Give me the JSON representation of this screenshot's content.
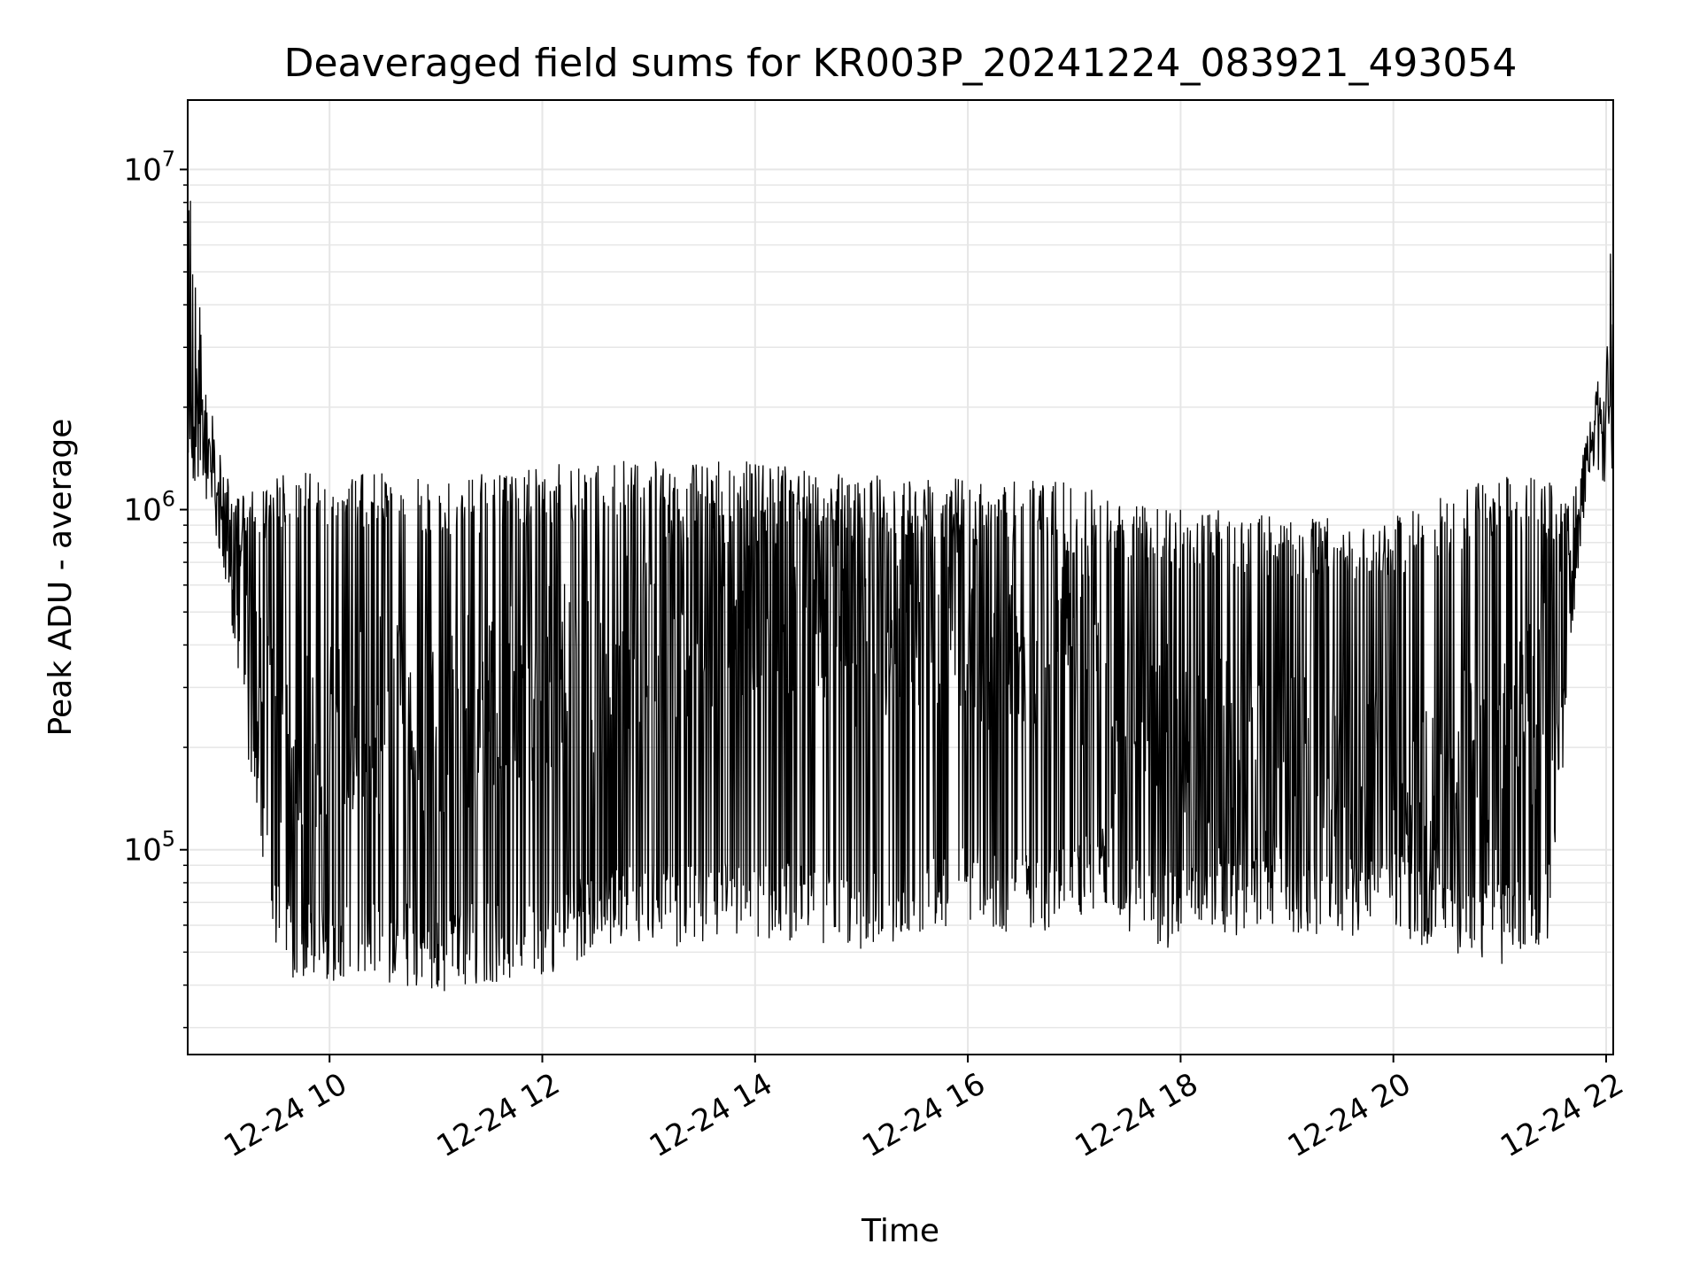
{
  "chart_data": {
    "type": "line",
    "title": "Deaveraged field sums for KR003P_20241224_083921_493054",
    "xlabel": "Time",
    "ylabel": "Peak ADU - average",
    "yscale": "log",
    "ylim": [
      25000,
      16000000
    ],
    "xlim": [
      "12-24 08:40",
      "12-24 22:04"
    ],
    "grid": true,
    "line_color": "#000000",
    "grid_color": "#e6e6e6",
    "x_ticks": [
      {
        "value": "12-24 10:00",
        "label": "12-24 10"
      },
      {
        "value": "12-24 12:00",
        "label": "12-24 12"
      },
      {
        "value": "12-24 14:00",
        "label": "12-24 14"
      },
      {
        "value": "12-24 16:00",
        "label": "12-24 16"
      },
      {
        "value": "12-24 18:00",
        "label": "12-24 18"
      },
      {
        "value": "12-24 20:00",
        "label": "12-24 20"
      },
      {
        "value": "12-24 22:00",
        "label": "12-24 22"
      }
    ],
    "y_ticks": [
      {
        "value": 100000,
        "base": "10",
        "exp": "5"
      },
      {
        "value": 1000000,
        "base": "10",
        "exp": "6"
      },
      {
        "value": 10000000,
        "base": "10",
        "exp": "7"
      }
    ],
    "series": [
      {
        "x": [
          "12-24 08:40",
          "12-24 08:50",
          "12-24 09:00",
          "12-24 09:10",
          "12-24 09:20",
          "12-24 09:30",
          "12-24 09:45",
          "12-24 10:00",
          "12-24 10:30",
          "12-24 11:00",
          "12-24 11:30",
          "12-24 12:00",
          "12-24 12:30",
          "12-24 13:00",
          "12-24 13:30",
          "12-24 14:00",
          "12-24 14:30",
          "12-24 15:00",
          "12-24 15:30",
          "12-24 16:00",
          "12-24 16:30",
          "12-24 17:00",
          "12-24 17:20",
          "12-24 17:30",
          "12-24 18:00",
          "12-24 18:30",
          "12-24 19:00",
          "12-24 19:30",
          "12-24 20:00",
          "12-24 20:30",
          "12-24 21:00",
          "12-24 21:30",
          "12-24 21:40",
          "12-24 21:50",
          "12-24 22:00",
          "12-24 22:04"
        ],
        "y_high": [
          11500000,
          2400000,
          1300000,
          1100000,
          1200000,
          1250000,
          1300000,
          1300000,
          1300000,
          1250000,
          1300000,
          1350000,
          1400000,
          1400000,
          1400000,
          1400000,
          1300000,
          1300000,
          1250000,
          1250000,
          1250000,
          1200000,
          1150000,
          1100000,
          1000000,
          1000000,
          950000,
          950000,
          950000,
          1100000,
          1300000,
          1200000,
          1000000,
          1700000,
          3200000,
          8800000
        ],
        "y_low": [
          1300000,
          1100000,
          700000,
          300000,
          90000,
          45000,
          40000,
          40000,
          40000,
          38000,
          40000,
          42000,
          48000,
          52000,
          50000,
          55000,
          50000,
          48000,
          55000,
          60000,
          55000,
          60000,
          70000,
          55000,
          50000,
          55000,
          55000,
          55000,
          55000,
          50000,
          45000,
          55000,
          400000,
          1300000,
          1200000,
          1100000
        ],
        "y_typical": [
          2000000,
          1300000,
          800000,
          400000,
          250000,
          200000,
          200000,
          220000,
          250000,
          250000,
          270000,
          300000,
          380000,
          450000,
          500000,
          550000,
          500000,
          450000,
          450000,
          450000,
          420000,
          400000,
          300000,
          250000,
          200000,
          180000,
          170000,
          160000,
          160000,
          180000,
          200000,
          300000,
          700000,
          1500000,
          1800000,
          1800000
        ]
      }
    ]
  }
}
